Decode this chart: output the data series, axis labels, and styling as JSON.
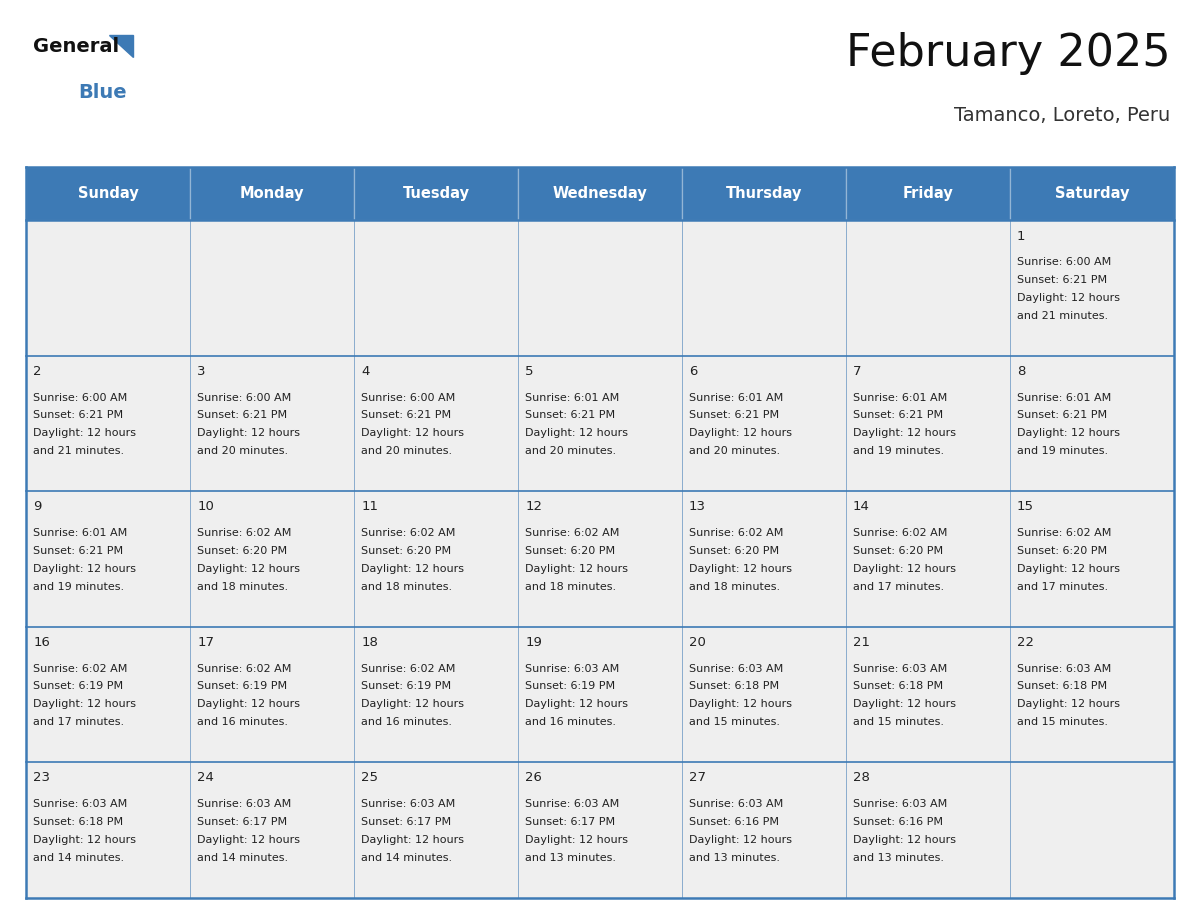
{
  "title": "February 2025",
  "subtitle": "Tamanco, Loreto, Peru",
  "days_of_week": [
    "Sunday",
    "Monday",
    "Tuesday",
    "Wednesday",
    "Thursday",
    "Friday",
    "Saturday"
  ],
  "header_bg_color": "#3d7ab5",
  "header_text_color": "#ffffff",
  "cell_bg_color": "#efefef",
  "border_color": "#3d7ab5",
  "day_num_color": "#222222",
  "text_color": "#222222",
  "title_color": "#111111",
  "subtitle_color": "#333333",
  "logo_black": "#111111",
  "logo_blue": "#3d7ab5",
  "calendar_data": [
    [
      null,
      null,
      null,
      null,
      null,
      null,
      {
        "day": "1",
        "sunrise": "6:00 AM",
        "sunset": "6:21 PM",
        "daylight_hours": "12 hours",
        "daylight_min": "and 21 minutes."
      }
    ],
    [
      {
        "day": "2",
        "sunrise": "6:00 AM",
        "sunset": "6:21 PM",
        "daylight_hours": "12 hours",
        "daylight_min": "and 21 minutes."
      },
      {
        "day": "3",
        "sunrise": "6:00 AM",
        "sunset": "6:21 PM",
        "daylight_hours": "12 hours",
        "daylight_min": "and 20 minutes."
      },
      {
        "day": "4",
        "sunrise": "6:00 AM",
        "sunset": "6:21 PM",
        "daylight_hours": "12 hours",
        "daylight_min": "and 20 minutes."
      },
      {
        "day": "5",
        "sunrise": "6:01 AM",
        "sunset": "6:21 PM",
        "daylight_hours": "12 hours",
        "daylight_min": "and 20 minutes."
      },
      {
        "day": "6",
        "sunrise": "6:01 AM",
        "sunset": "6:21 PM",
        "daylight_hours": "12 hours",
        "daylight_min": "and 20 minutes."
      },
      {
        "day": "7",
        "sunrise": "6:01 AM",
        "sunset": "6:21 PM",
        "daylight_hours": "12 hours",
        "daylight_min": "and 19 minutes."
      },
      {
        "day": "8",
        "sunrise": "6:01 AM",
        "sunset": "6:21 PM",
        "daylight_hours": "12 hours",
        "daylight_min": "and 19 minutes."
      }
    ],
    [
      {
        "day": "9",
        "sunrise": "6:01 AM",
        "sunset": "6:21 PM",
        "daylight_hours": "12 hours",
        "daylight_min": "and 19 minutes."
      },
      {
        "day": "10",
        "sunrise": "6:02 AM",
        "sunset": "6:20 PM",
        "daylight_hours": "12 hours",
        "daylight_min": "and 18 minutes."
      },
      {
        "day": "11",
        "sunrise": "6:02 AM",
        "sunset": "6:20 PM",
        "daylight_hours": "12 hours",
        "daylight_min": "and 18 minutes."
      },
      {
        "day": "12",
        "sunrise": "6:02 AM",
        "sunset": "6:20 PM",
        "daylight_hours": "12 hours",
        "daylight_min": "and 18 minutes."
      },
      {
        "day": "13",
        "sunrise": "6:02 AM",
        "sunset": "6:20 PM",
        "daylight_hours": "12 hours",
        "daylight_min": "and 18 minutes."
      },
      {
        "day": "14",
        "sunrise": "6:02 AM",
        "sunset": "6:20 PM",
        "daylight_hours": "12 hours",
        "daylight_min": "and 17 minutes."
      },
      {
        "day": "15",
        "sunrise": "6:02 AM",
        "sunset": "6:20 PM",
        "daylight_hours": "12 hours",
        "daylight_min": "and 17 minutes."
      }
    ],
    [
      {
        "day": "16",
        "sunrise": "6:02 AM",
        "sunset": "6:19 PM",
        "daylight_hours": "12 hours",
        "daylight_min": "and 17 minutes."
      },
      {
        "day": "17",
        "sunrise": "6:02 AM",
        "sunset": "6:19 PM",
        "daylight_hours": "12 hours",
        "daylight_min": "and 16 minutes."
      },
      {
        "day": "18",
        "sunrise": "6:02 AM",
        "sunset": "6:19 PM",
        "daylight_hours": "12 hours",
        "daylight_min": "and 16 minutes."
      },
      {
        "day": "19",
        "sunrise": "6:03 AM",
        "sunset": "6:19 PM",
        "daylight_hours": "12 hours",
        "daylight_min": "and 16 minutes."
      },
      {
        "day": "20",
        "sunrise": "6:03 AM",
        "sunset": "6:18 PM",
        "daylight_hours": "12 hours",
        "daylight_min": "and 15 minutes."
      },
      {
        "day": "21",
        "sunrise": "6:03 AM",
        "sunset": "6:18 PM",
        "daylight_hours": "12 hours",
        "daylight_min": "and 15 minutes."
      },
      {
        "day": "22",
        "sunrise": "6:03 AM",
        "sunset": "6:18 PM",
        "daylight_hours": "12 hours",
        "daylight_min": "and 15 minutes."
      }
    ],
    [
      {
        "day": "23",
        "sunrise": "6:03 AM",
        "sunset": "6:18 PM",
        "daylight_hours": "12 hours",
        "daylight_min": "and 14 minutes."
      },
      {
        "day": "24",
        "sunrise": "6:03 AM",
        "sunset": "6:17 PM",
        "daylight_hours": "12 hours",
        "daylight_min": "and 14 minutes."
      },
      {
        "day": "25",
        "sunrise": "6:03 AM",
        "sunset": "6:17 PM",
        "daylight_hours": "12 hours",
        "daylight_min": "and 14 minutes."
      },
      {
        "day": "26",
        "sunrise": "6:03 AM",
        "sunset": "6:17 PM",
        "daylight_hours": "12 hours",
        "daylight_min": "and 13 minutes."
      },
      {
        "day": "27",
        "sunrise": "6:03 AM",
        "sunset": "6:16 PM",
        "daylight_hours": "12 hours",
        "daylight_min": "and 13 minutes."
      },
      {
        "day": "28",
        "sunrise": "6:03 AM",
        "sunset": "6:16 PM",
        "daylight_hours": "12 hours",
        "daylight_min": "and 13 minutes."
      },
      null
    ]
  ]
}
